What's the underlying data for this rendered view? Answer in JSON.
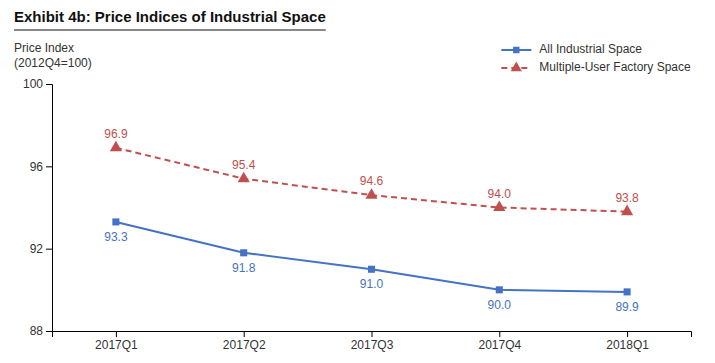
{
  "chart_data": {
    "type": "line",
    "title": "Exhibit 4b: Price Indices of Industrial Space",
    "ylabel": [
      "Price Index",
      "(2012Q4=100)"
    ],
    "categories": [
      "2017Q1",
      "2017Q2",
      "2017Q3",
      "2017Q4",
      "2018Q1"
    ],
    "series": [
      {
        "name": "All Industrial Space",
        "color": "#4472C4",
        "marker": "square",
        "line_style": "solid",
        "values": [
          93.3,
          91.8,
          91.0,
          90.0,
          89.9
        ],
        "value_labels": [
          "93.3",
          "91.8",
          "91.0",
          "90.0",
          "89.9"
        ]
      },
      {
        "name": "Multiple-User Factory Space",
        "color": "#C0504D",
        "marker": "triangle",
        "line_style": "dashed",
        "values": [
          96.9,
          95.4,
          94.6,
          94.0,
          93.8
        ],
        "value_labels": [
          "96.9",
          "95.4",
          "94.6",
          "94.0",
          "93.8"
        ]
      }
    ],
    "ylim": [
      88,
      100
    ],
    "yticks": [
      88,
      92,
      96,
      100
    ],
    "grid": false,
    "legend": "upper right",
    "data_labels": true
  }
}
